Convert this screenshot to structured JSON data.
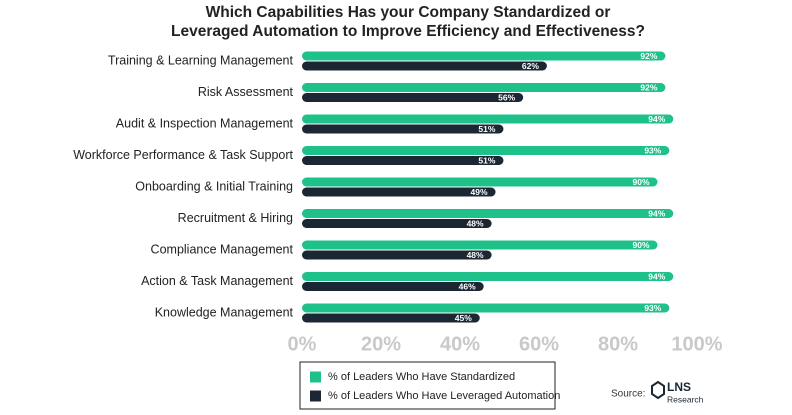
{
  "chart_data": {
    "type": "barh",
    "title_lines": [
      "Which Capabilities Has your Company Standardized or",
      "Leveraged Automation to Improve Efficiency and Effectiveness?"
    ],
    "categories": [
      "Training & Learning Management",
      "Risk Assessment",
      "Audit & Inspection Management",
      "Workforce Performance & Task Support",
      "Onboarding & Initial Training",
      "Recruitment & Hiring",
      "Compliance Management",
      "Action & Task Management",
      "Knowledge Management"
    ],
    "series": [
      {
        "name": "% of Leaders Who Have Standardized",
        "color": "#1fc18b",
        "values": [
          92,
          92,
          94,
          93,
          90,
          94,
          90,
          94,
          93
        ],
        "value_labels": [
          "92%",
          "92%",
          "94%",
          "93%",
          "90%",
          "94%",
          "90%",
          "94%",
          "93%"
        ]
      },
      {
        "name": "% of Leaders Who Have Leveraged Automation",
        "color": "#1b2733",
        "values": [
          62,
          56,
          51,
          51,
          49,
          48,
          48,
          46,
          45
        ],
        "value_labels": [
          "62%",
          "56%",
          "51%",
          "51%",
          "49%",
          "48%",
          "48%",
          "46%",
          "45%"
        ]
      }
    ],
    "xlim": [
      0,
      100
    ],
    "xticks": [
      {
        "value": 0,
        "label": "0%"
      },
      {
        "value": 20,
        "label": "20%"
      },
      {
        "value": 40,
        "label": "40%"
      },
      {
        "value": 60,
        "label": "60%"
      },
      {
        "value": 80,
        "label": "80%"
      },
      {
        "value": 100,
        "label": "100%"
      }
    ],
    "grid": false,
    "legend": "bottom",
    "source_label": "Source:",
    "source_logo": "LNS",
    "source_logo_sub": "Research"
  }
}
